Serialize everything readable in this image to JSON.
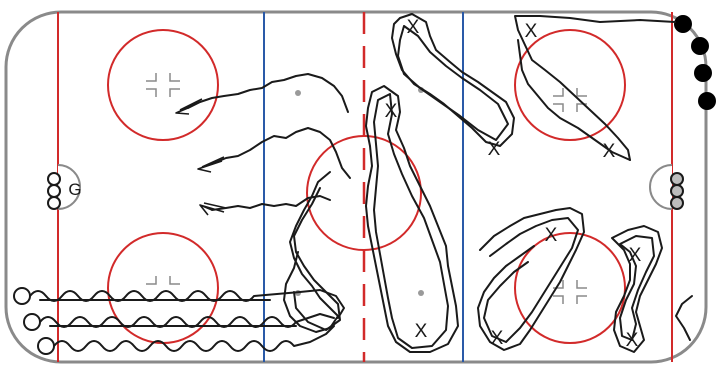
{
  "diagram": {
    "goalie_label": "G",
    "cone_label": "X",
    "colors": {
      "board": "#8a8a8a",
      "red_line": "#d22a2a",
      "blue_line": "#2a5aa8",
      "path": "#1a1a1a",
      "player_fill": "#000000",
      "puck_start_stroke": "#1a1a1a"
    },
    "icons": {
      "player": "filled-circle",
      "puck_start": "open-circle",
      "cone": "letter-x",
      "goalie": "letter-g",
      "arrow": "double-arrowhead",
      "faceoff_dot": "small-gray-dot"
    }
  }
}
